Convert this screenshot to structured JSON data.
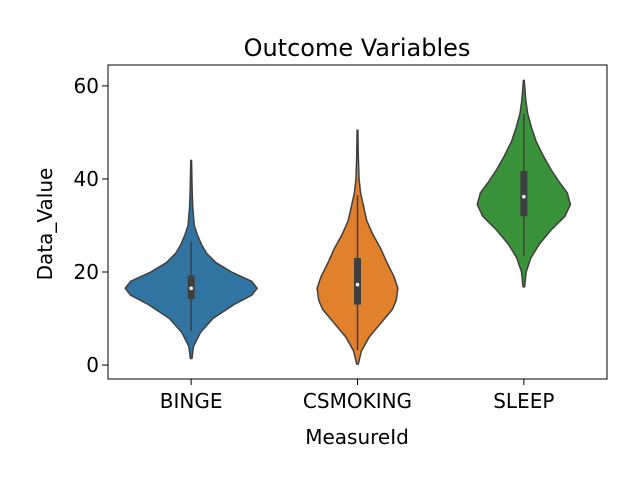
{
  "chart_data": {
    "type": "violin",
    "title": "Outcome Variables",
    "xlabel": "MeasureId",
    "ylabel": "Data_Value",
    "categories": [
      "BINGE",
      "CSMOKING",
      "SLEEP"
    ],
    "ylim": [
      -3,
      64.5
    ],
    "yticks": [
      0,
      20,
      40,
      60
    ],
    "grid": false,
    "legend": "none",
    "colors": [
      "#3274a1",
      "#e1812c",
      "#3a923a"
    ],
    "violins": [
      {
        "category": "BINGE",
        "min": 1.4,
        "max": 44.0,
        "q1": 14.2,
        "median": 16.5,
        "q3": 19.3,
        "whisker_low": 7.3,
        "whisker_high": 26.5,
        "density": [
          [
            1.4,
            0.01
          ],
          [
            4,
            0.03
          ],
          [
            7,
            0.12
          ],
          [
            10,
            0.28
          ],
          [
            13,
            0.55
          ],
          [
            15,
            0.78
          ],
          [
            16.5,
            0.85
          ],
          [
            18,
            0.78
          ],
          [
            20,
            0.52
          ],
          [
            22,
            0.32
          ],
          [
            24,
            0.2
          ],
          [
            26,
            0.13
          ],
          [
            28,
            0.08
          ],
          [
            30,
            0.04
          ],
          [
            34,
            0.02
          ],
          [
            38,
            0.012
          ],
          [
            44,
            0.005
          ]
        ]
      },
      {
        "category": "CSMOKING",
        "min": 0.2,
        "max": 50.5,
        "q1": 13.0,
        "median": 17.3,
        "q3": 23.0,
        "whisker_low": 3.2,
        "whisker_high": 36.5,
        "density": [
          [
            0.2,
            0.01
          ],
          [
            3,
            0.05
          ],
          [
            6,
            0.15
          ],
          [
            9,
            0.3
          ],
          [
            12,
            0.45
          ],
          [
            14,
            0.5
          ],
          [
            16.5,
            0.52
          ],
          [
            19,
            0.47
          ],
          [
            22,
            0.38
          ],
          [
            25,
            0.3
          ],
          [
            28,
            0.2
          ],
          [
            31,
            0.12
          ],
          [
            34,
            0.08
          ],
          [
            37,
            0.04
          ],
          [
            40,
            0.02
          ],
          [
            45,
            0.01
          ],
          [
            50.5,
            0.005
          ]
        ]
      },
      {
        "category": "SLEEP",
        "min": 16.8,
        "max": 61.2,
        "q1": 32.0,
        "median": 36.2,
        "q3": 41.7,
        "whisker_low": 23.5,
        "whisker_high": 54.0,
        "density": [
          [
            16.8,
            0.01
          ],
          [
            20,
            0.03
          ],
          [
            23,
            0.09
          ],
          [
            26,
            0.2
          ],
          [
            29,
            0.35
          ],
          [
            32,
            0.53
          ],
          [
            34.5,
            0.6
          ],
          [
            37,
            0.56
          ],
          [
            39.5,
            0.45
          ],
          [
            42,
            0.35
          ],
          [
            45,
            0.25
          ],
          [
            48,
            0.16
          ],
          [
            51,
            0.1
          ],
          [
            54,
            0.05
          ],
          [
            57,
            0.025
          ],
          [
            61.2,
            0.005
          ]
        ]
      }
    ]
  }
}
